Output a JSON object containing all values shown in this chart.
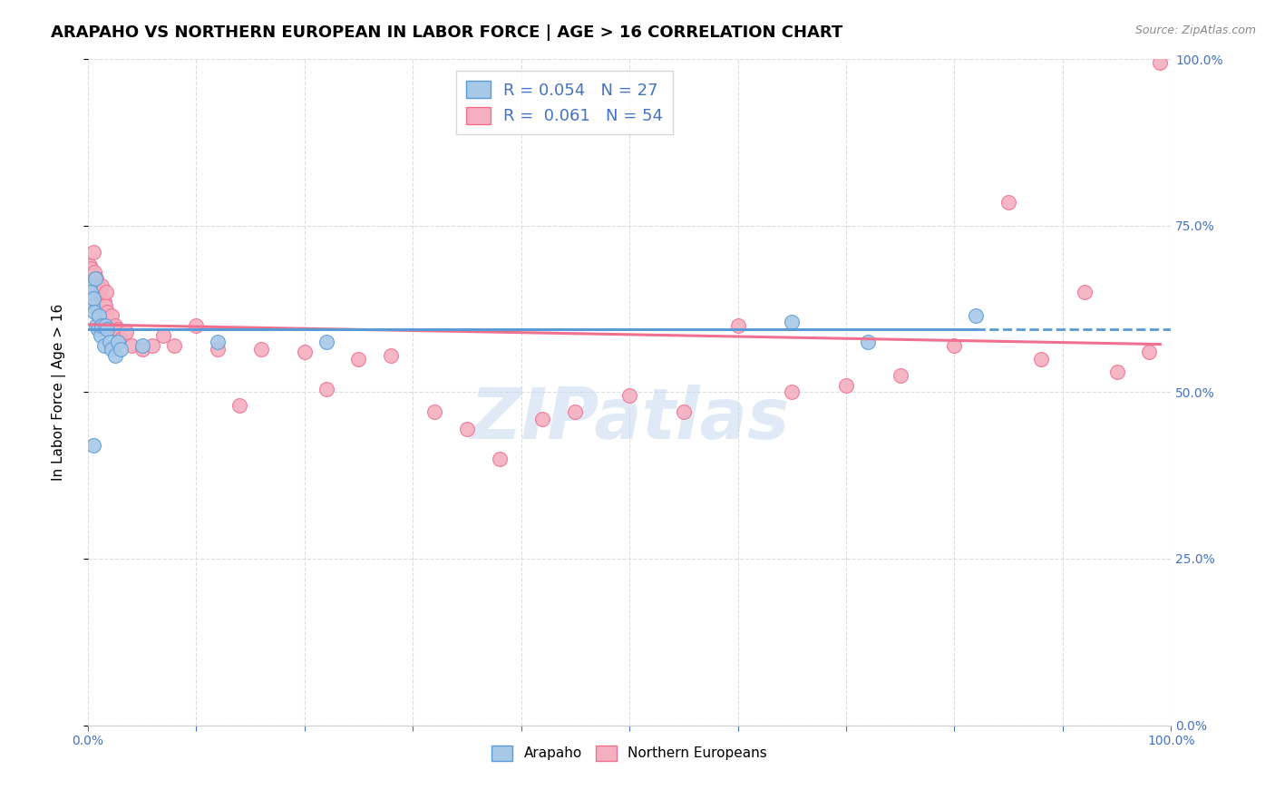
{
  "title": "ARAPAHO VS NORTHERN EUROPEAN IN LABOR FORCE | AGE > 16 CORRELATION CHART",
  "source": "Source: ZipAtlas.com",
  "ylabel": "In Labor Force | Age > 16",
  "xlim": [
    0,
    1
  ],
  "ylim": [
    0,
    1
  ],
  "color_arapaho": "#a8c8e8",
  "color_northern": "#f4b0c0",
  "trendline_arapaho_color": "#5b9bd5",
  "trendline_northern_color": "#f07090",
  "watermark": "ZIPatlas",
  "background_color": "#ffffff",
  "grid_color": "#dddddd",
  "arapaho_x": [
    0.001,
    0.002,
    0.003,
    0.004,
    0.005,
    0.006,
    0.007,
    0.008,
    0.009,
    0.01,
    0.012,
    0.013,
    0.015,
    0.016,
    0.018,
    0.02,
    0.022,
    0.025,
    0.028,
    0.03,
    0.05,
    0.12,
    0.22,
    0.65,
    0.72,
    0.82,
    0.005
  ],
  "arapaho_y": [
    0.64,
    0.66,
    0.65,
    0.63,
    0.64,
    0.62,
    0.67,
    0.6,
    0.595,
    0.615,
    0.585,
    0.6,
    0.57,
    0.6,
    0.595,
    0.575,
    0.565,
    0.555,
    0.575,
    0.565,
    0.57,
    0.575,
    0.575,
    0.605,
    0.575,
    0.615,
    0.42
  ],
  "northern_x": [
    0.0,
    0.002,
    0.003,
    0.004,
    0.005,
    0.006,
    0.007,
    0.008,
    0.009,
    0.01,
    0.011,
    0.012,
    0.013,
    0.015,
    0.016,
    0.017,
    0.018,
    0.02,
    0.022,
    0.025,
    0.028,
    0.03,
    0.035,
    0.04,
    0.05,
    0.06,
    0.07,
    0.08,
    0.1,
    0.12,
    0.14,
    0.16,
    0.2,
    0.22,
    0.25,
    0.28,
    0.32,
    0.35,
    0.38,
    0.42,
    0.45,
    0.5,
    0.55,
    0.6,
    0.65,
    0.7,
    0.75,
    0.8,
    0.85,
    0.88,
    0.92,
    0.95,
    0.98,
    0.99
  ],
  "northern_y": [
    0.67,
    0.69,
    0.685,
    0.675,
    0.71,
    0.68,
    0.665,
    0.67,
    0.66,
    0.655,
    0.65,
    0.64,
    0.66,
    0.635,
    0.63,
    0.65,
    0.62,
    0.6,
    0.615,
    0.6,
    0.595,
    0.58,
    0.59,
    0.57,
    0.565,
    0.57,
    0.585,
    0.57,
    0.6,
    0.565,
    0.48,
    0.565,
    0.56,
    0.505,
    0.55,
    0.555,
    0.47,
    0.445,
    0.4,
    0.46,
    0.47,
    0.495,
    0.47,
    0.6,
    0.5,
    0.51,
    0.525,
    0.57,
    0.785,
    0.55,
    0.65,
    0.53,
    0.56,
    0.995
  ],
  "title_fontsize": 13,
  "label_fontsize": 11,
  "tick_fontsize": 10,
  "legend_fontsize": 13
}
